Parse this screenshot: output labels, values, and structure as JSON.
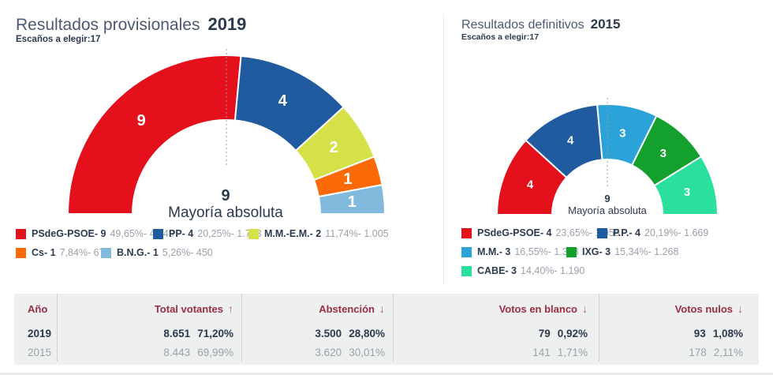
{
  "charts": {
    "left": {
      "title": "Resultados provisionales",
      "year": "2019",
      "seats_label": "Escaños a elegir:",
      "seats_value": "17",
      "center_value": "9",
      "center_label": "Mayoría absoluta",
      "segments": [
        {
          "name": "PSdeG-PSOE",
          "seats": 9,
          "color": "#e4101c",
          "label": "PSdeG-PSOE- 9",
          "detail": "49,65%- 4.249"
        },
        {
          "name": "PP",
          "seats": 4,
          "color": "#1f5b9e",
          "label": "PP- 4",
          "detail": "20,25%- 1.733"
        },
        {
          "name": "M.M.-E.M.",
          "seats": 2,
          "color": "#d6e14a",
          "label": "M.M.-E.M.- 2",
          "detail": "11,74%- 1.005"
        },
        {
          "name": "Cs",
          "seats": 1,
          "color": "#fb6a07",
          "label": "Cs- 1",
          "detail": "7,84%- 671"
        },
        {
          "name": "B.N.G.",
          "seats": 1,
          "color": "#82bade",
          "label": "B.N.G.- 1",
          "detail": "5,26%- 450"
        }
      ]
    },
    "right": {
      "title": "Resultados definitivos",
      "year": "2015",
      "seats_label": "Escaños a elegir:",
      "seats_value": "17",
      "center_value": "9",
      "center_label": "Mayoría absoluta",
      "segments": [
        {
          "name": "PSdeG-PSOE",
          "seats": 4,
          "color": "#e4101c",
          "label": "PSdeG-PSOE- 4",
          "detail": "23,65%- 1.955"
        },
        {
          "name": "P.P.",
          "seats": 4,
          "color": "#1f5b9e",
          "label": "P.P.- 4",
          "detail": "20,19%- 1.669"
        },
        {
          "name": "M.M.",
          "seats": 3,
          "color": "#2ba2d8",
          "label": "M.M.- 3",
          "detail": "16,55%- 1.368"
        },
        {
          "name": "IXG",
          "seats": 3,
          "color": "#13a02c",
          "label": "IXG- 3",
          "detail": "15,34%- 1.268"
        },
        {
          "name": "CABE",
          "seats": 3,
          "color": "#2ae09c",
          "label": "CABE- 3",
          "detail": "14,40%- 1.190"
        }
      ]
    }
  },
  "table": {
    "columns": [
      {
        "label": "Año",
        "arrow": ""
      },
      {
        "label": "Total votantes",
        "arrow": "↑"
      },
      {
        "label": "Abstención",
        "arrow": "↓"
      },
      {
        "label": "Votos en blanco",
        "arrow": "↓"
      },
      {
        "label": "Votos nulos",
        "arrow": "↓"
      }
    ],
    "rows": [
      {
        "year": "2019",
        "total": "8.651",
        "total_pct": "71,20%",
        "abst": "3.500",
        "abst_pct": "28,80%",
        "blanco": "79",
        "blanco_pct": "0,92%",
        "nulos": "93",
        "nulos_pct": "1,08%"
      },
      {
        "year": "2015",
        "total": "8.443",
        "total_pct": "69,99%",
        "abst": "3.620",
        "abst_pct": "30,01%",
        "blanco": "141",
        "blanco_pct": "1,71%",
        "nulos": "178",
        "nulos_pct": "2,11%"
      }
    ]
  },
  "chart_data": [
    {
      "type": "pie",
      "variant": "hemicycle-donut",
      "title": "Resultados provisionales 2019",
      "subtitle": "Escaños a elegir:17",
      "seats_total": 17,
      "categories": [
        "PSdeG-PSOE",
        "PP",
        "M.M.-E.M.",
        "Cs",
        "B.N.G."
      ],
      "values": [
        9,
        4,
        2,
        1,
        1
      ],
      "percentages": [
        "49,65%",
        "20,25%",
        "11,74%",
        "7,84%",
        "5,26%"
      ],
      "votes": [
        "4.249",
        "1.733",
        "1.005",
        "671",
        "450"
      ],
      "colors": [
        "#e4101c",
        "#1f5b9e",
        "#d6e14a",
        "#fb6a07",
        "#82bade"
      ],
      "annotation": "9 Mayoría absoluta",
      "legend_position": "bottom"
    },
    {
      "type": "pie",
      "variant": "hemicycle-donut",
      "title": "Resultados definitivos 2015",
      "subtitle": "Escaños a elegir:17",
      "seats_total": 17,
      "categories": [
        "PSdeG-PSOE",
        "P.P.",
        "M.M.",
        "IXG",
        "CABE"
      ],
      "values": [
        4,
        4,
        3,
        3,
        3
      ],
      "percentages": [
        "23,65%",
        "20,19%",
        "16,55%",
        "15,34%",
        "14,40%"
      ],
      "votes": [
        "1.955",
        "1.669",
        "1.368",
        "1.268",
        "1.190"
      ],
      "colors": [
        "#e4101c",
        "#1f5b9e",
        "#2ba2d8",
        "#13a02c",
        "#2ae09c"
      ],
      "annotation": "9 Mayoría absoluta",
      "legend_position": "bottom"
    },
    {
      "type": "table",
      "columns": [
        "Año",
        "Total votantes",
        "Abstención",
        "Votos en blanco",
        "Votos nulos"
      ],
      "rows": [
        [
          "2019",
          "8.651 71,20%",
          "3.500 28,80%",
          "79 0,92%",
          "93 1,08%"
        ],
        [
          "2015",
          "8.443 69,99%",
          "3.620 30,01%",
          "141 1,71%",
          "178 2,11%"
        ]
      ]
    }
  ]
}
